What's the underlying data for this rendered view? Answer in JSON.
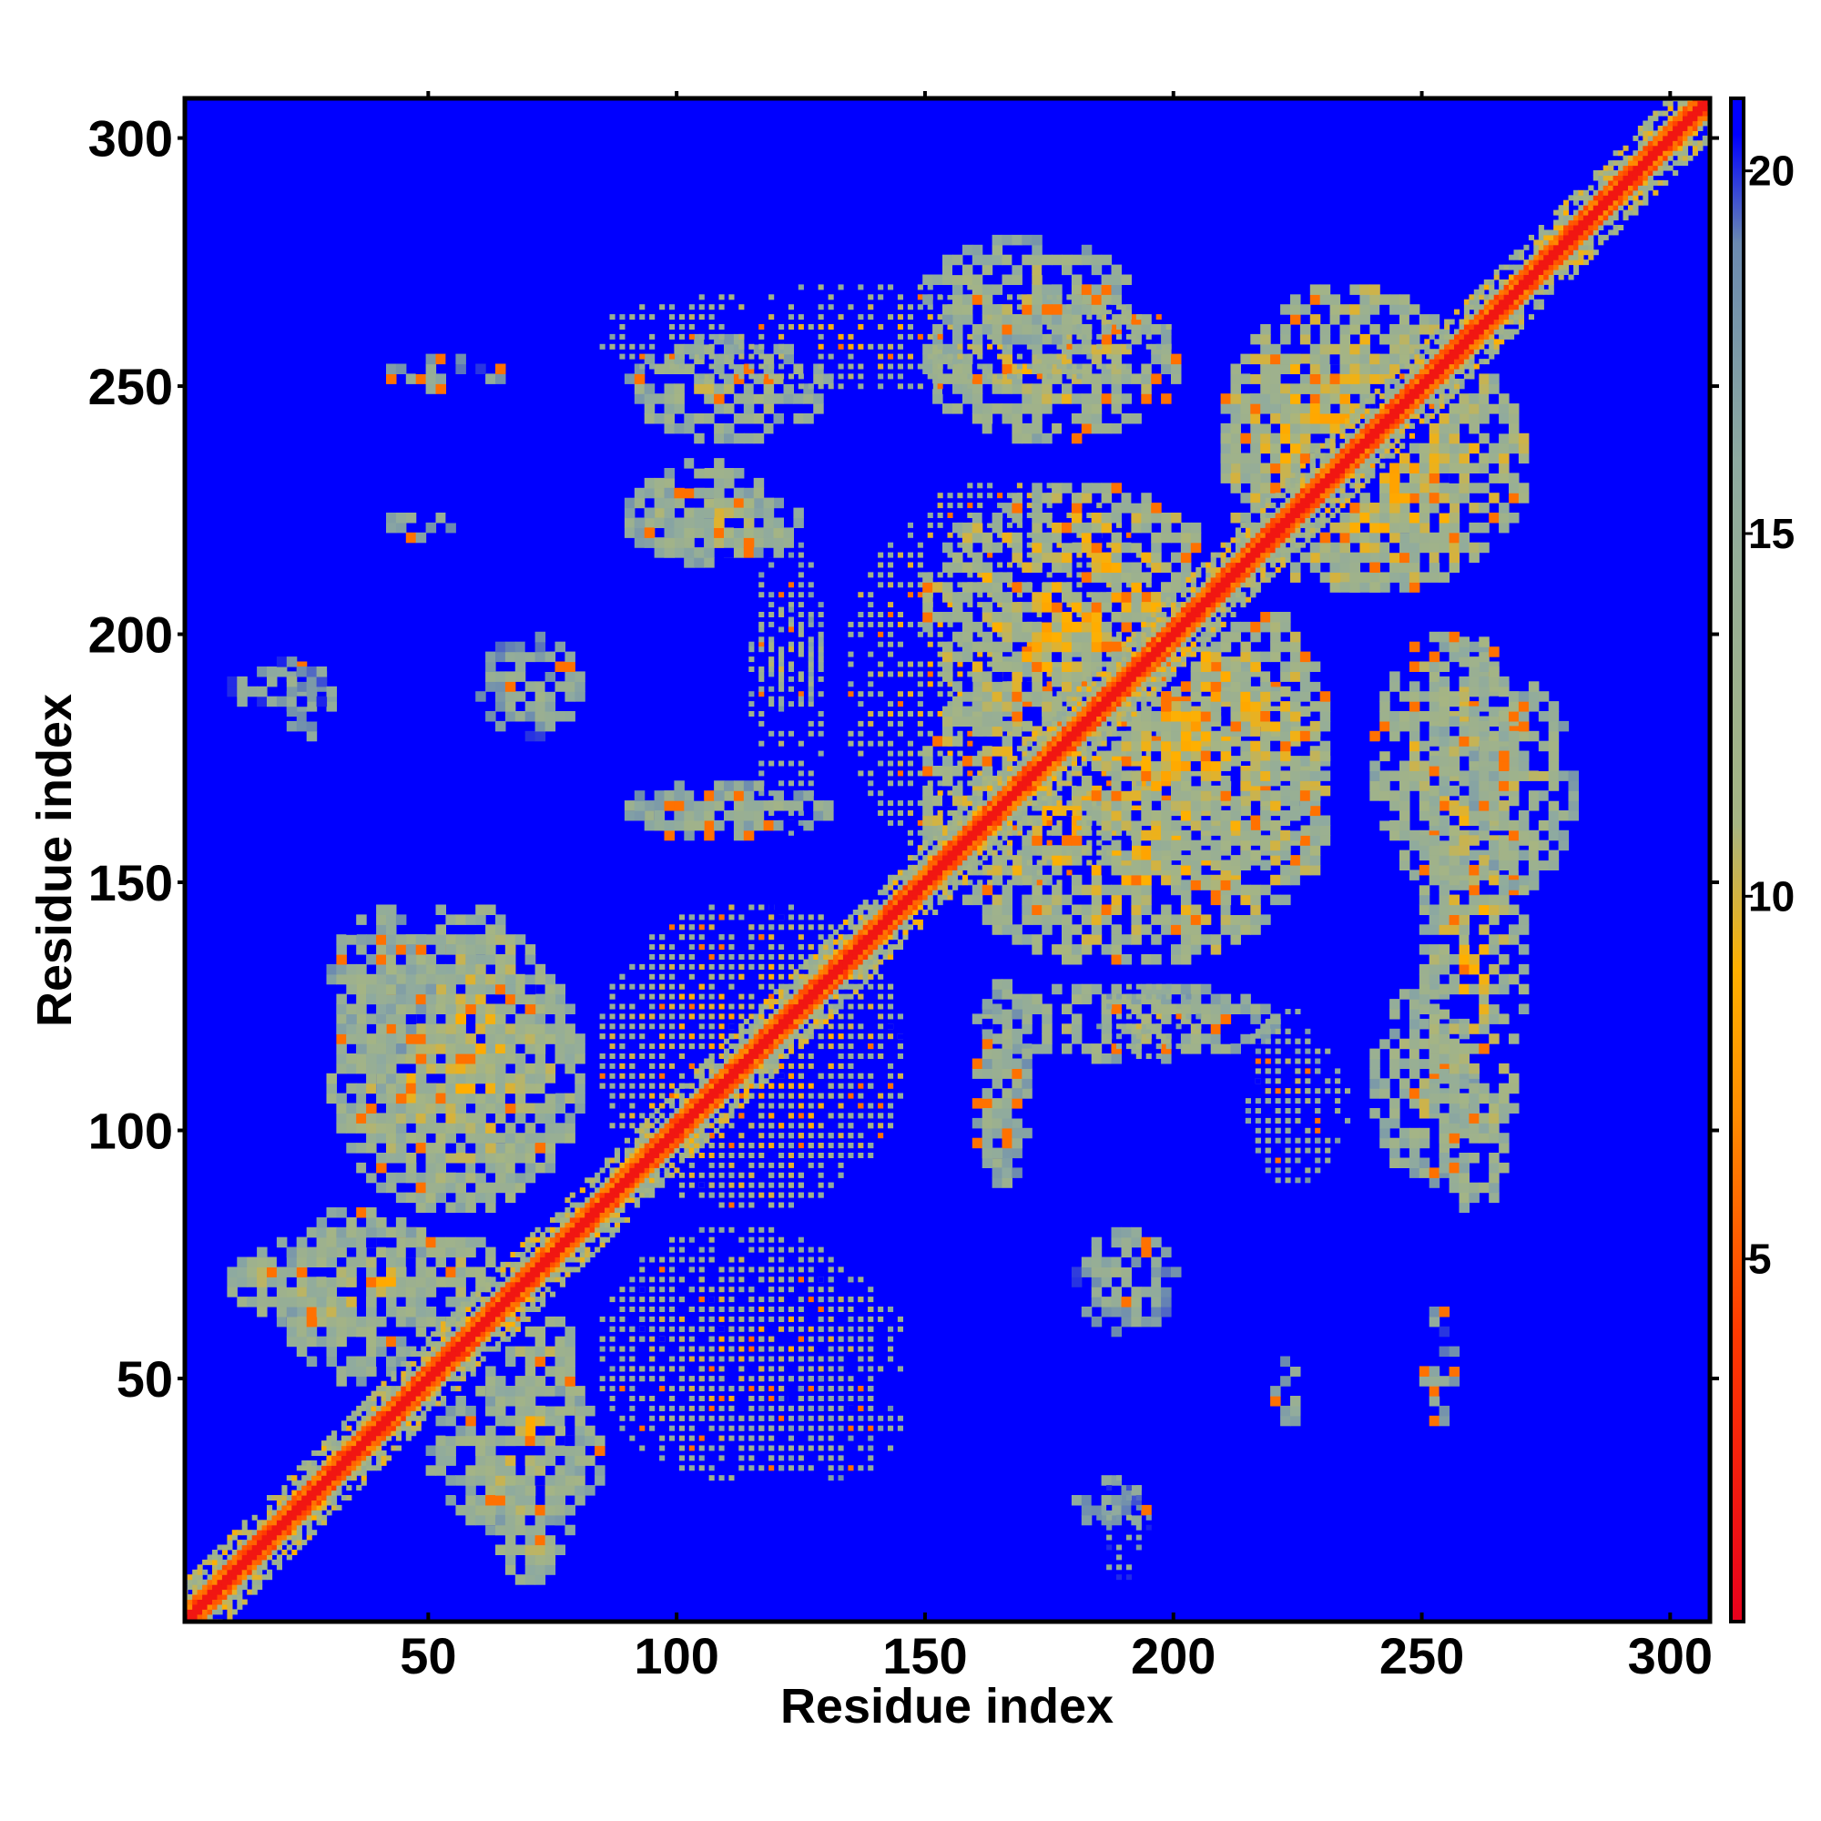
{
  "chart_data": {
    "type": "heatmap",
    "title": "",
    "xlabel": "Residue index",
    "ylabel": "Residue index",
    "xlim": [
      1,
      308
    ],
    "ylim": [
      1,
      308
    ],
    "x_ticks": [
      50,
      100,
      150,
      200,
      250,
      300
    ],
    "y_ticks": [
      50,
      100,
      150,
      200,
      250,
      300
    ],
    "x_tick_labels": [
      "50",
      "100",
      "150",
      "200",
      "250",
      "300"
    ],
    "y_tick_labels": [
      "50",
      "100",
      "150",
      "200",
      "250",
      "300"
    ],
    "colorbar": {
      "range": [
        0,
        21
      ],
      "ticks": [
        5,
        10,
        15,
        20
      ],
      "tick_labels": [
        "5",
        "10",
        "15",
        "20"
      ],
      "stops": [
        {
          "value": 0,
          "color": "#e8001c"
        },
        {
          "value": 4,
          "color": "#ff3a00"
        },
        {
          "value": 7,
          "color": "#ff8c00"
        },
        {
          "value": 9,
          "color": "#ffb000"
        },
        {
          "value": 11,
          "color": "#a6b583"
        },
        {
          "value": 16,
          "color": "#8eaaa0"
        },
        {
          "value": 19,
          "color": "#6b8ab0"
        },
        {
          "value": 20.5,
          "color": "#0000ff"
        }
      ]
    },
    "background_color": "#0000ff",
    "matrix_description_values": {
      "diagonal_band": {
        "from": 1,
        "to": 308,
        "value": 3
      },
      "contact_regions": [
        {
          "x": [
            10,
            70
          ],
          "y": [
            60,
            80
          ],
          "value": 11
        },
        {
          "x": [
            30,
            80
          ],
          "y": [
            85,
            140
          ],
          "value": 11
        },
        {
          "x": [
            85,
            145
          ],
          "y": [
            40,
            75
          ],
          "value": 11
        },
        {
          "x": [
            85,
            145
          ],
          "y": [
            85,
            145
          ],
          "value": 10
        },
        {
          "x": [
            50,
            85
          ],
          "y": [
            20,
            50
          ],
          "value": 12
        },
        {
          "x": [
            115,
            145
          ],
          "y": [
            30,
            50
          ],
          "value": 13
        },
        {
          "x": [
            135,
            200
          ],
          "y": [
            150,
            230
          ],
          "value": 10
        },
        {
          "x": [
            160,
            220
          ],
          "y": [
            115,
            130
          ],
          "value": 12
        },
        {
          "x": [
            180,
            230
          ],
          "y": [
            150,
            210
          ],
          "value": 10
        },
        {
          "x": [
            210,
            270
          ],
          "y": [
            210,
            260
          ],
          "value": 10
        },
        {
          "x": [
            240,
            270
          ],
          "y": [
            150,
            200
          ],
          "value": 11
        },
        {
          "x": [
            215,
            235
          ],
          "y": [
            90,
            120
          ],
          "value": 12
        },
        {
          "x": [
            240,
            260
          ],
          "y": [
            90,
            130
          ],
          "value": 12
        },
        {
          "x": [
            85,
            200
          ],
          "y": [
            250,
            270
          ],
          "value": 11
        },
        {
          "x": [
            90,
            125
          ],
          "y": [
            215,
            230
          ],
          "value": 12
        },
        {
          "x": [
            115,
            130
          ],
          "y": [
            185,
            205
          ],
          "value": 12
        },
        {
          "x": [
            90,
            130
          ],
          "y": [
            160,
            170
          ],
          "value": 13
        },
        {
          "x": [
            160,
            170
          ],
          "y": [
            90,
            110
          ],
          "value": 13
        },
        {
          "x": [
            180,
            200
          ],
          "y": [
            60,
            80
          ],
          "value": 14
        },
        {
          "x": [
            180,
            195
          ],
          "y": [
            20,
            30
          ],
          "value": 15
        },
        {
          "x": [
            10,
            30
          ],
          "y": [
            185,
            195
          ],
          "value": 15
        },
        {
          "x": [
            220,
            226
          ],
          "y": [
            40,
            55
          ],
          "value": 15
        },
        {
          "x": [
            250,
            256
          ],
          "y": [
            40,
            65
          ],
          "value": 15
        },
        {
          "x": [
            260,
            280
          ],
          "y": [
            150,
            190
          ],
          "value": 12
        }
      ]
    },
    "grid": false,
    "legend": "none"
  }
}
